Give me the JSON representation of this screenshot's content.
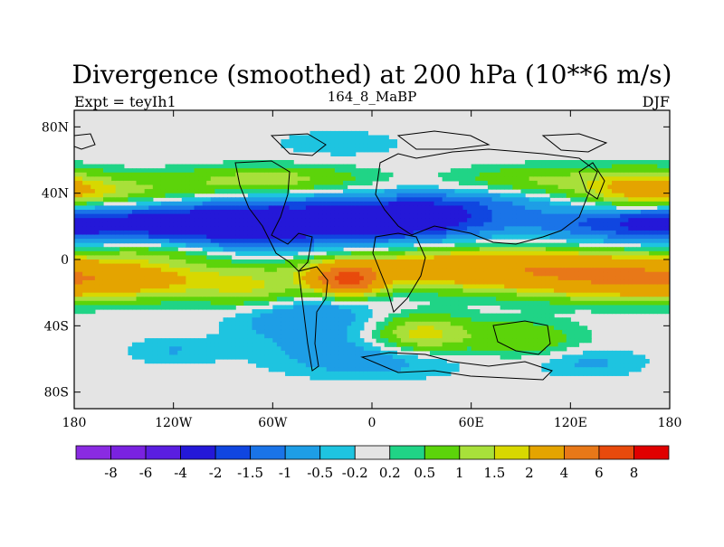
{
  "chart_data": {
    "type": "heatmap",
    "title": "Divergence (smoothed) at 200 hPa (10**6 m/s)",
    "subtitle_left": "Expt = teyIh1",
    "subtitle_center": "164_8_MaBP",
    "subtitle_right": "DJF",
    "x_axis": {
      "range": [
        -180,
        180
      ],
      "ticks": [
        -180,
        -120,
        -60,
        0,
        60,
        120,
        180
      ],
      "tick_labels": [
        "180",
        "120W",
        "60W",
        "0",
        "60E",
        "120E",
        "180"
      ]
    },
    "y_axis": {
      "range": [
        -90,
        90
      ],
      "ticks": [
        80,
        40,
        0,
        -40,
        -80
      ],
      "tick_labels": [
        "80N",
        "40N",
        "0",
        "40S",
        "80S"
      ]
    },
    "colorbar": {
      "colors": [
        "#8a2be2",
        "#7a22e0",
        "#5a1ee0",
        "#2418d8",
        "#1046e0",
        "#1a74e8",
        "#1e9ee6",
        "#1ec4e0",
        "#e4e4e4",
        "#20d486",
        "#5cd40a",
        "#a8e03a",
        "#d8d800",
        "#e4a400",
        "#e87818",
        "#e84a0c",
        "#e00000"
      ],
      "labels": [
        "-8",
        "-6",
        "-4",
        "-2",
        "-1.5",
        "-1",
        "-0.5",
        "-0.2",
        "0.2",
        "0.5",
        "1",
        "1.5",
        "2",
        "4",
        "6",
        "8"
      ]
    },
    "fields": [
      {
        "lon": -75,
        "lat": 22,
        "value": -3.0,
        "slon": 55,
        "slat": 11
      },
      {
        "lon": 25,
        "lat": 25,
        "value": -2.5,
        "slon": 35,
        "slat": 9
      },
      {
        "lon": -165,
        "lat": 22,
        "value": -1.0,
        "slon": 35,
        "slat": 8
      },
      {
        "lon": 130,
        "lat": 22,
        "value": -1.2,
        "slon": 35,
        "slat": 8
      },
      {
        "lon": 175,
        "lat": 22,
        "value": -0.8,
        "slon": 25,
        "slat": 8
      },
      {
        "lon": -165,
        "lat": -12,
        "value": 2.2,
        "slon": 70,
        "slat": 8
      },
      {
        "lon": 160,
        "lat": -12,
        "value": 1.8,
        "slon": 45,
        "slat": 8
      },
      {
        "lon": 70,
        "lat": -5,
        "value": 3.2,
        "slon": 65,
        "slat": 8
      },
      {
        "lon": -15,
        "lat": -12,
        "value": 6.0,
        "slon": 14,
        "slat": 6
      },
      {
        "lon": -70,
        "lat": -20,
        "value": 1.0,
        "slon": 22,
        "slat": 7
      },
      {
        "lon": -150,
        "lat": 40,
        "value": 1.2,
        "slon": 50,
        "slat": 7
      },
      {
        "lon": -60,
        "lat": 48,
        "value": 1.3,
        "slon": 40,
        "slat": 6
      },
      {
        "lon": 100,
        "lat": 48,
        "value": 1.0,
        "slon": 35,
        "slat": 6
      },
      {
        "lon": 165,
        "lat": 42,
        "value": 2.0,
        "slon": 25,
        "slat": 8
      },
      {
        "lon": -130,
        "lat": 5,
        "value": 1.0,
        "slon": 30,
        "slat": 5
      },
      {
        "lon": 30,
        "lat": -45,
        "value": 1.8,
        "slon": 20,
        "slat": 8
      },
      {
        "lon": 90,
        "lat": -48,
        "value": 1.0,
        "slon": 25,
        "slat": 8
      },
      {
        "lon": -40,
        "lat": -35,
        "value": -1.0,
        "slon": 30,
        "slat": 12
      },
      {
        "lon": 0,
        "lat": -60,
        "value": -0.8,
        "slon": 40,
        "slat": 8
      },
      {
        "lon": 130,
        "lat": -62,
        "value": -0.6,
        "slon": 25,
        "slat": 6
      },
      {
        "lon": -120,
        "lat": -55,
        "value": -0.5,
        "slon": 20,
        "slat": 6
      },
      {
        "lon": -20,
        "lat": 70,
        "value": -0.4,
        "slon": 30,
        "slat": 6
      },
      {
        "lon": 70,
        "lat": 35,
        "value": -0.6,
        "slon": 30,
        "slat": 6
      }
    ]
  }
}
